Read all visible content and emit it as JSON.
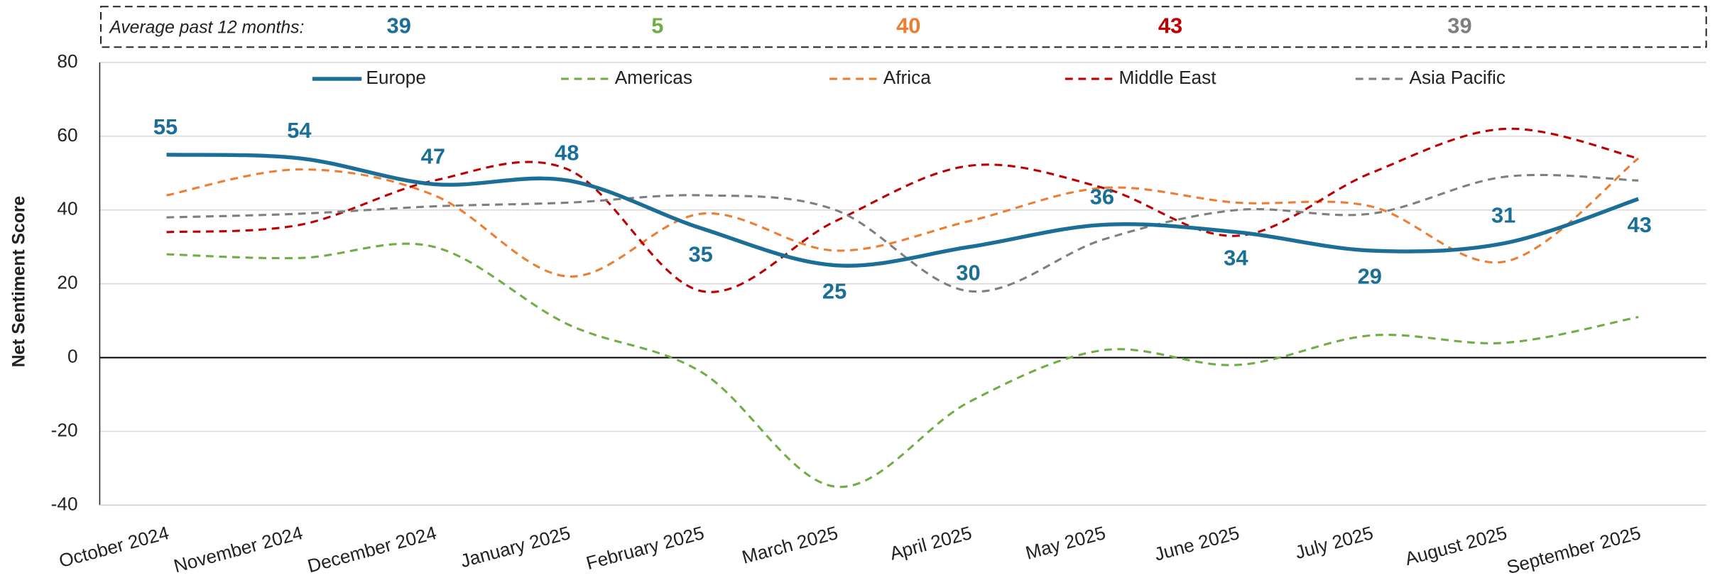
{
  "chart_data": {
    "type": "line",
    "y_label": "Net Sentiment Score",
    "summary": {
      "label": "Average past 12 months:",
      "values": [
        39,
        5,
        40,
        43,
        39
      ],
      "colors": [
        "#1b6f97",
        "#70ad47",
        "#ed7d31",
        "#c00000",
        "#7f7f7f"
      ]
    },
    "categories": [
      "October 2024",
      "November 2024",
      "December 2024",
      "January 2025",
      "February 2025",
      "March 2025",
      "April 2025",
      "May 2025",
      "June 2025",
      "July 2025",
      "August 2025",
      "September 2025"
    ],
    "series": [
      {
        "name": "Europe",
        "color": "#1b6f97",
        "values": [
          55,
          54,
          47,
          48,
          35,
          25,
          30,
          36,
          34,
          29,
          31,
          43
        ]
      },
      {
        "name": "Americas",
        "color": "#70ad47",
        "values": [
          28,
          27,
          30,
          9,
          -4,
          -35,
          -12,
          2,
          -2,
          6,
          4,
          11
        ]
      },
      {
        "name": "Africa",
        "color": "#ed7d31",
        "values": [
          44,
          51,
          44,
          22,
          39,
          29,
          37,
          46,
          42,
          41,
          26,
          54
        ]
      },
      {
        "name": "Middle East",
        "color": "#c00000",
        "values": [
          34,
          36,
          48,
          51,
          18,
          37,
          52,
          46,
          33,
          50,
          62,
          54
        ]
      },
      {
        "name": "Asia Pacific",
        "color": "#7f7f7f",
        "values": [
          38,
          39,
          41,
          42,
          44,
          40,
          18,
          32,
          40,
          39,
          49,
          48
        ]
      }
    ],
    "labeled_series": 0,
    "ylim": [
      -40,
      80
    ],
    "yticks": [
      -40,
      -20,
      0,
      20,
      40,
      60,
      80
    ],
    "grid": true
  }
}
